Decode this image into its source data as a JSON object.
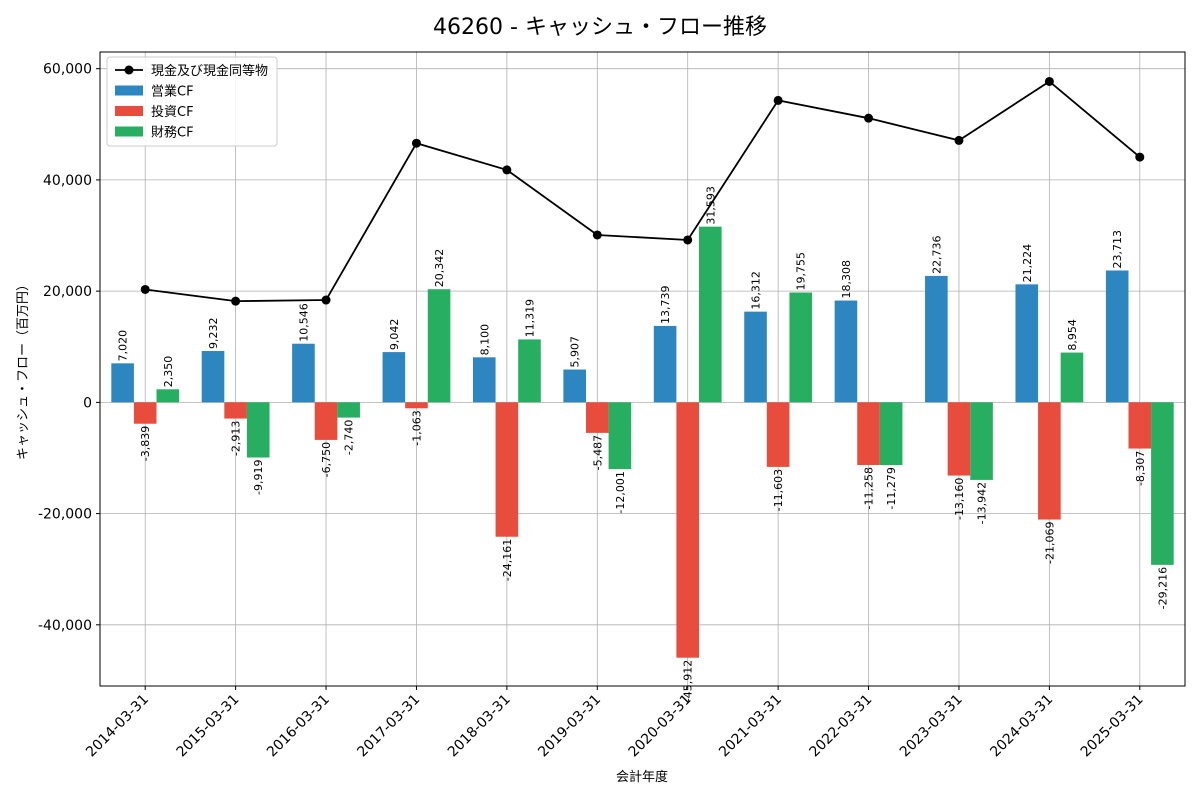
{
  "chart_data": {
    "type": "bar",
    "title": "46260 - キャッシュ・フロー推移",
    "xlabel": "会計年度",
    "ylabel": "キャッシュ・フロー（百万円）",
    "categories": [
      "2014-03-31",
      "2015-03-31",
      "2016-03-31",
      "2017-03-31",
      "2018-03-31",
      "2019-03-31",
      "2020-03-31",
      "2021-03-31",
      "2022-03-31",
      "2023-03-31",
      "2024-03-31",
      "2025-03-31"
    ],
    "ylim": [
      -51000,
      63000
    ],
    "yticks": [
      -40000,
      -20000,
      0,
      20000,
      40000,
      60000
    ],
    "ytick_labels": [
      "-40,000",
      "-20,000",
      "0",
      "20,000",
      "40,000",
      "60,000"
    ],
    "grid": true,
    "legend_position": "top-left",
    "series": [
      {
        "name": "営業CF",
        "kind": "bar",
        "color": "#2e86c1",
        "values": [
          7020,
          9232,
          10546,
          9042,
          8100,
          5907,
          13739,
          16312,
          18308,
          22736,
          21224,
          23713
        ],
        "labels": [
          "7,020",
          "9,232",
          "10,546",
          "9,042",
          "8,100",
          "5,907",
          "13,739",
          "16,312",
          "18,308",
          "22,736",
          "21,224",
          "23,713"
        ]
      },
      {
        "name": "投資CF",
        "kind": "bar",
        "color": "#e74c3c",
        "values": [
          -3839,
          -2913,
          -6750,
          -1063,
          -24161,
          -5487,
          -45912,
          -11603,
          -11258,
          -13160,
          -21069,
          -8307
        ],
        "labels": [
          "-3,839",
          "-2,913",
          "-6,750",
          "-1,063",
          "-24,161",
          "-5,487",
          "-45,912",
          "-11,603",
          "-11,258",
          "-13,160",
          "-21,069",
          "-8,307"
        ]
      },
      {
        "name": "財務CF",
        "kind": "bar",
        "color": "#27ae60",
        "values": [
          2350,
          -9919,
          -2740,
          20342,
          11319,
          -12001,
          31593,
          19755,
          -11279,
          -13942,
          8954,
          -29216
        ],
        "labels": [
          "2,350",
          "-9,919",
          "-2,740",
          "20,342",
          "11,319",
          "-12,001",
          "31,593",
          "19,755",
          "-11,279",
          "-13,942",
          "8,954",
          "-29,216"
        ]
      },
      {
        "name": "現金及び現金同等物",
        "kind": "line",
        "color": "#000000",
        "values": [
          20300,
          18200,
          18400,
          46600,
          41800,
          30100,
          29200,
          54300,
          51100,
          47100,
          57700,
          44100
        ]
      }
    ]
  }
}
